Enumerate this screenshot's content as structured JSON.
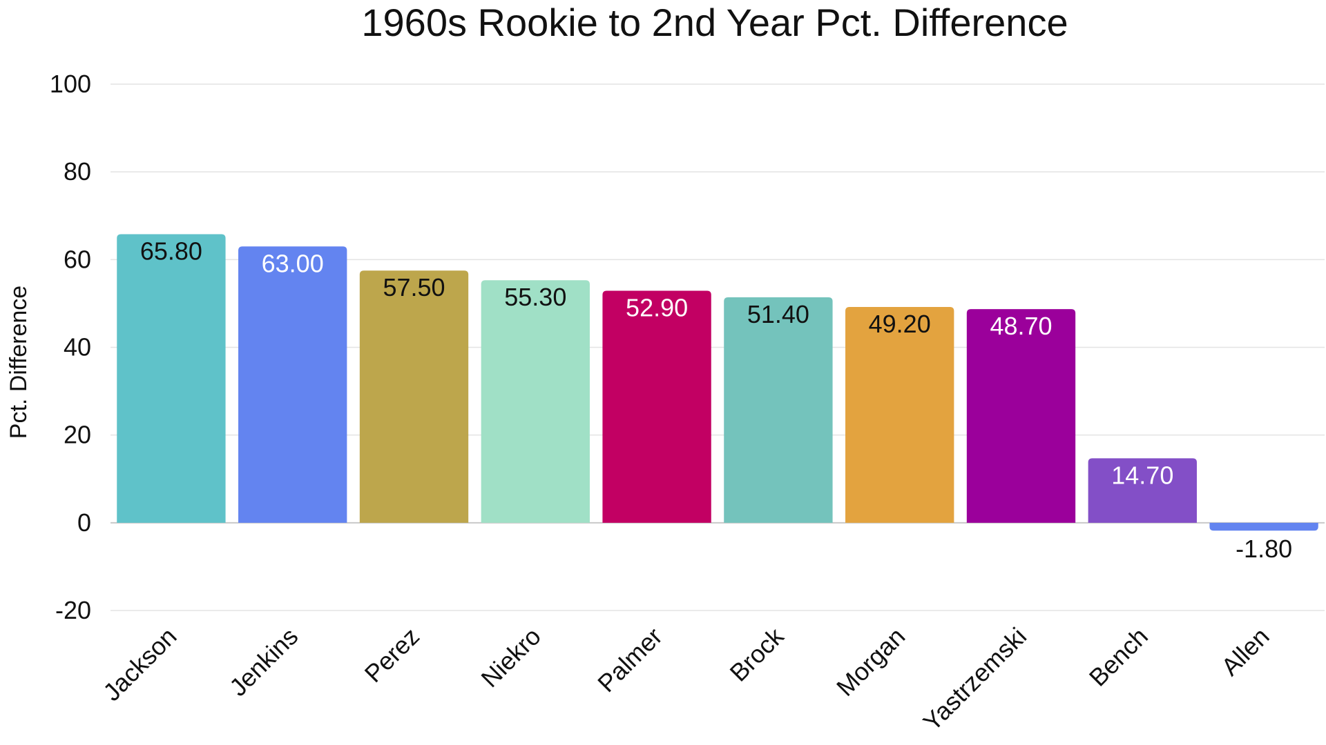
{
  "chart_data": {
    "type": "bar",
    "title": "1960s Rookie to 2nd Year Pct. Difference",
    "xlabel": "",
    "ylabel": "Pct. Difference",
    "ylim": [
      -20,
      100
    ],
    "yticks": [
      -20,
      0,
      20,
      40,
      60,
      80,
      100
    ],
    "grid": true,
    "legend": "none",
    "categories": [
      "Jackson",
      "Jenkins",
      "Perez",
      "Niekro",
      "Palmer",
      "Brock",
      "Morgan",
      "Yastrzemski",
      "Bench",
      "Allen"
    ],
    "values": [
      65.8,
      63.0,
      57.5,
      55.3,
      52.9,
      51.4,
      49.2,
      48.7,
      14.7,
      -1.8
    ],
    "value_labels": [
      "65.80",
      "63.00",
      "57.50",
      "55.30",
      "52.90",
      "51.40",
      "49.20",
      "48.70",
      "14.70",
      "-1.80"
    ],
    "colors": [
      "#5fc2c9",
      "#6384f0",
      "#bda64c",
      "#a0e0c6",
      "#c20063",
      "#74c3bc",
      "#e3a33f",
      "#9b009b",
      "#834fc7",
      "#6384f0"
    ],
    "label_colors": [
      "#111111",
      "#ffffff",
      "#111111",
      "#111111",
      "#ffffff",
      "#111111",
      "#111111",
      "#ffffff",
      "#ffffff",
      "#111111"
    ]
  }
}
